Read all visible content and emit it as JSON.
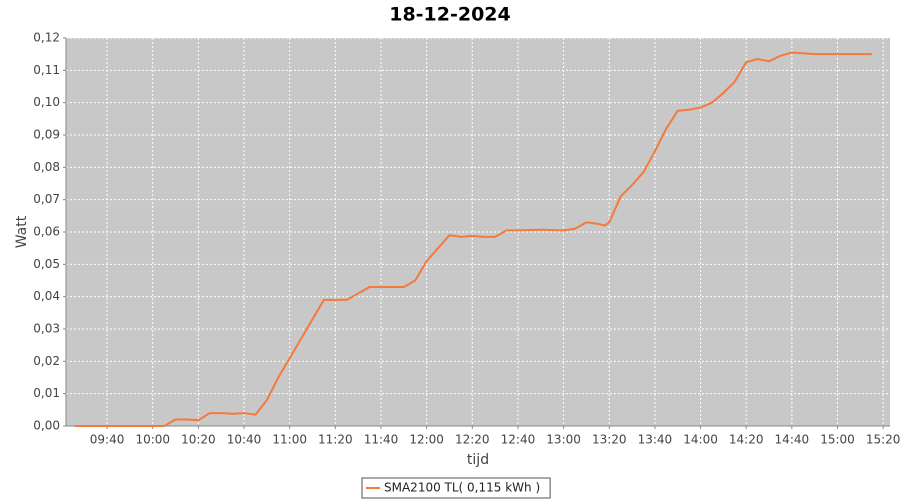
{
  "chart_data": {
    "type": "line",
    "title": "18-12-2024",
    "x_label": "tijd",
    "y_label": "Watt",
    "x": [
      "09:26",
      "09:40",
      "10:00",
      "10:05",
      "10:10",
      "10:15",
      "10:20",
      "10:25",
      "10:30",
      "10:35",
      "10:40",
      "10:45",
      "10:50",
      "10:55",
      "11:00",
      "11:05",
      "11:10",
      "11:15",
      "11:20",
      "11:25",
      "11:30",
      "11:35",
      "11:40",
      "11:50",
      "11:55",
      "12:00",
      "12:05",
      "12:10",
      "12:15",
      "12:20",
      "12:25",
      "12:30",
      "12:35",
      "12:40",
      "12:50",
      "13:00",
      "13:05",
      "13:10",
      "13:15",
      "13:18",
      "13:20",
      "13:25",
      "13:30",
      "13:35",
      "13:40",
      "13:45",
      "13:50",
      "13:55",
      "14:00",
      "14:05",
      "14:10",
      "14:15",
      "14:20",
      "14:25",
      "14:30",
      "14:35",
      "14:40",
      "14:50",
      "15:00",
      "15:10",
      "15:15"
    ],
    "series": [
      {
        "name": "SMA2100 TL( 0,115 kWh )",
        "color": "#f5793a",
        "values": [
          0,
          0,
          0,
          0,
          0.002,
          0.002,
          0.0018,
          0.004,
          0.004,
          0.0038,
          0.004,
          0.0035,
          0.008,
          0.015,
          0.021,
          0.027,
          0.033,
          0.039,
          0.039,
          0.039,
          0.041,
          0.043,
          0.043,
          0.043,
          0.045,
          0.051,
          0.055,
          0.059,
          0.0585,
          0.0588,
          0.0585,
          0.0585,
          0.0605,
          0.0605,
          0.0607,
          0.0605,
          0.061,
          0.063,
          0.0625,
          0.062,
          0.063,
          0.071,
          0.0745,
          0.0785,
          0.085,
          0.092,
          0.0975,
          0.0978,
          0.0985,
          0.1,
          0.103,
          0.1065,
          0.1125,
          0.1135,
          0.1128,
          0.1145,
          0.1155,
          0.115,
          0.115,
          0.115,
          0.115
        ]
      }
    ],
    "xlim": [
      "09:22",
      "15:23"
    ],
    "xticks": [
      "09:40",
      "10:00",
      "10:20",
      "10:40",
      "11:00",
      "11:20",
      "11:40",
      "12:00",
      "12:20",
      "12:40",
      "13:00",
      "13:20",
      "13:40",
      "14:00",
      "14:20",
      "14:40",
      "15:00",
      "15:20"
    ],
    "ylim": [
      0,
      0.12
    ],
    "yticks": [
      {
        "value": 0,
        "label": "0,00"
      },
      {
        "value": 0.01,
        "label": "0,01"
      },
      {
        "value": 0.02,
        "label": "0,02"
      },
      {
        "value": 0.03,
        "label": "0,03"
      },
      {
        "value": 0.04,
        "label": "0,04"
      },
      {
        "value": 0.05,
        "label": "0,05"
      },
      {
        "value": 0.06,
        "label": "0,06"
      },
      {
        "value": 0.07,
        "label": "0,07"
      },
      {
        "value": 0.08,
        "label": "0,08"
      },
      {
        "value": 0.09,
        "label": "0,09"
      },
      {
        "value": 0.1,
        "label": "0,10"
      },
      {
        "value": 0.11,
        "label": "0,11"
      },
      {
        "value": 0.12,
        "label": "0,12"
      }
    ],
    "grid": true,
    "legend": "bottom"
  }
}
